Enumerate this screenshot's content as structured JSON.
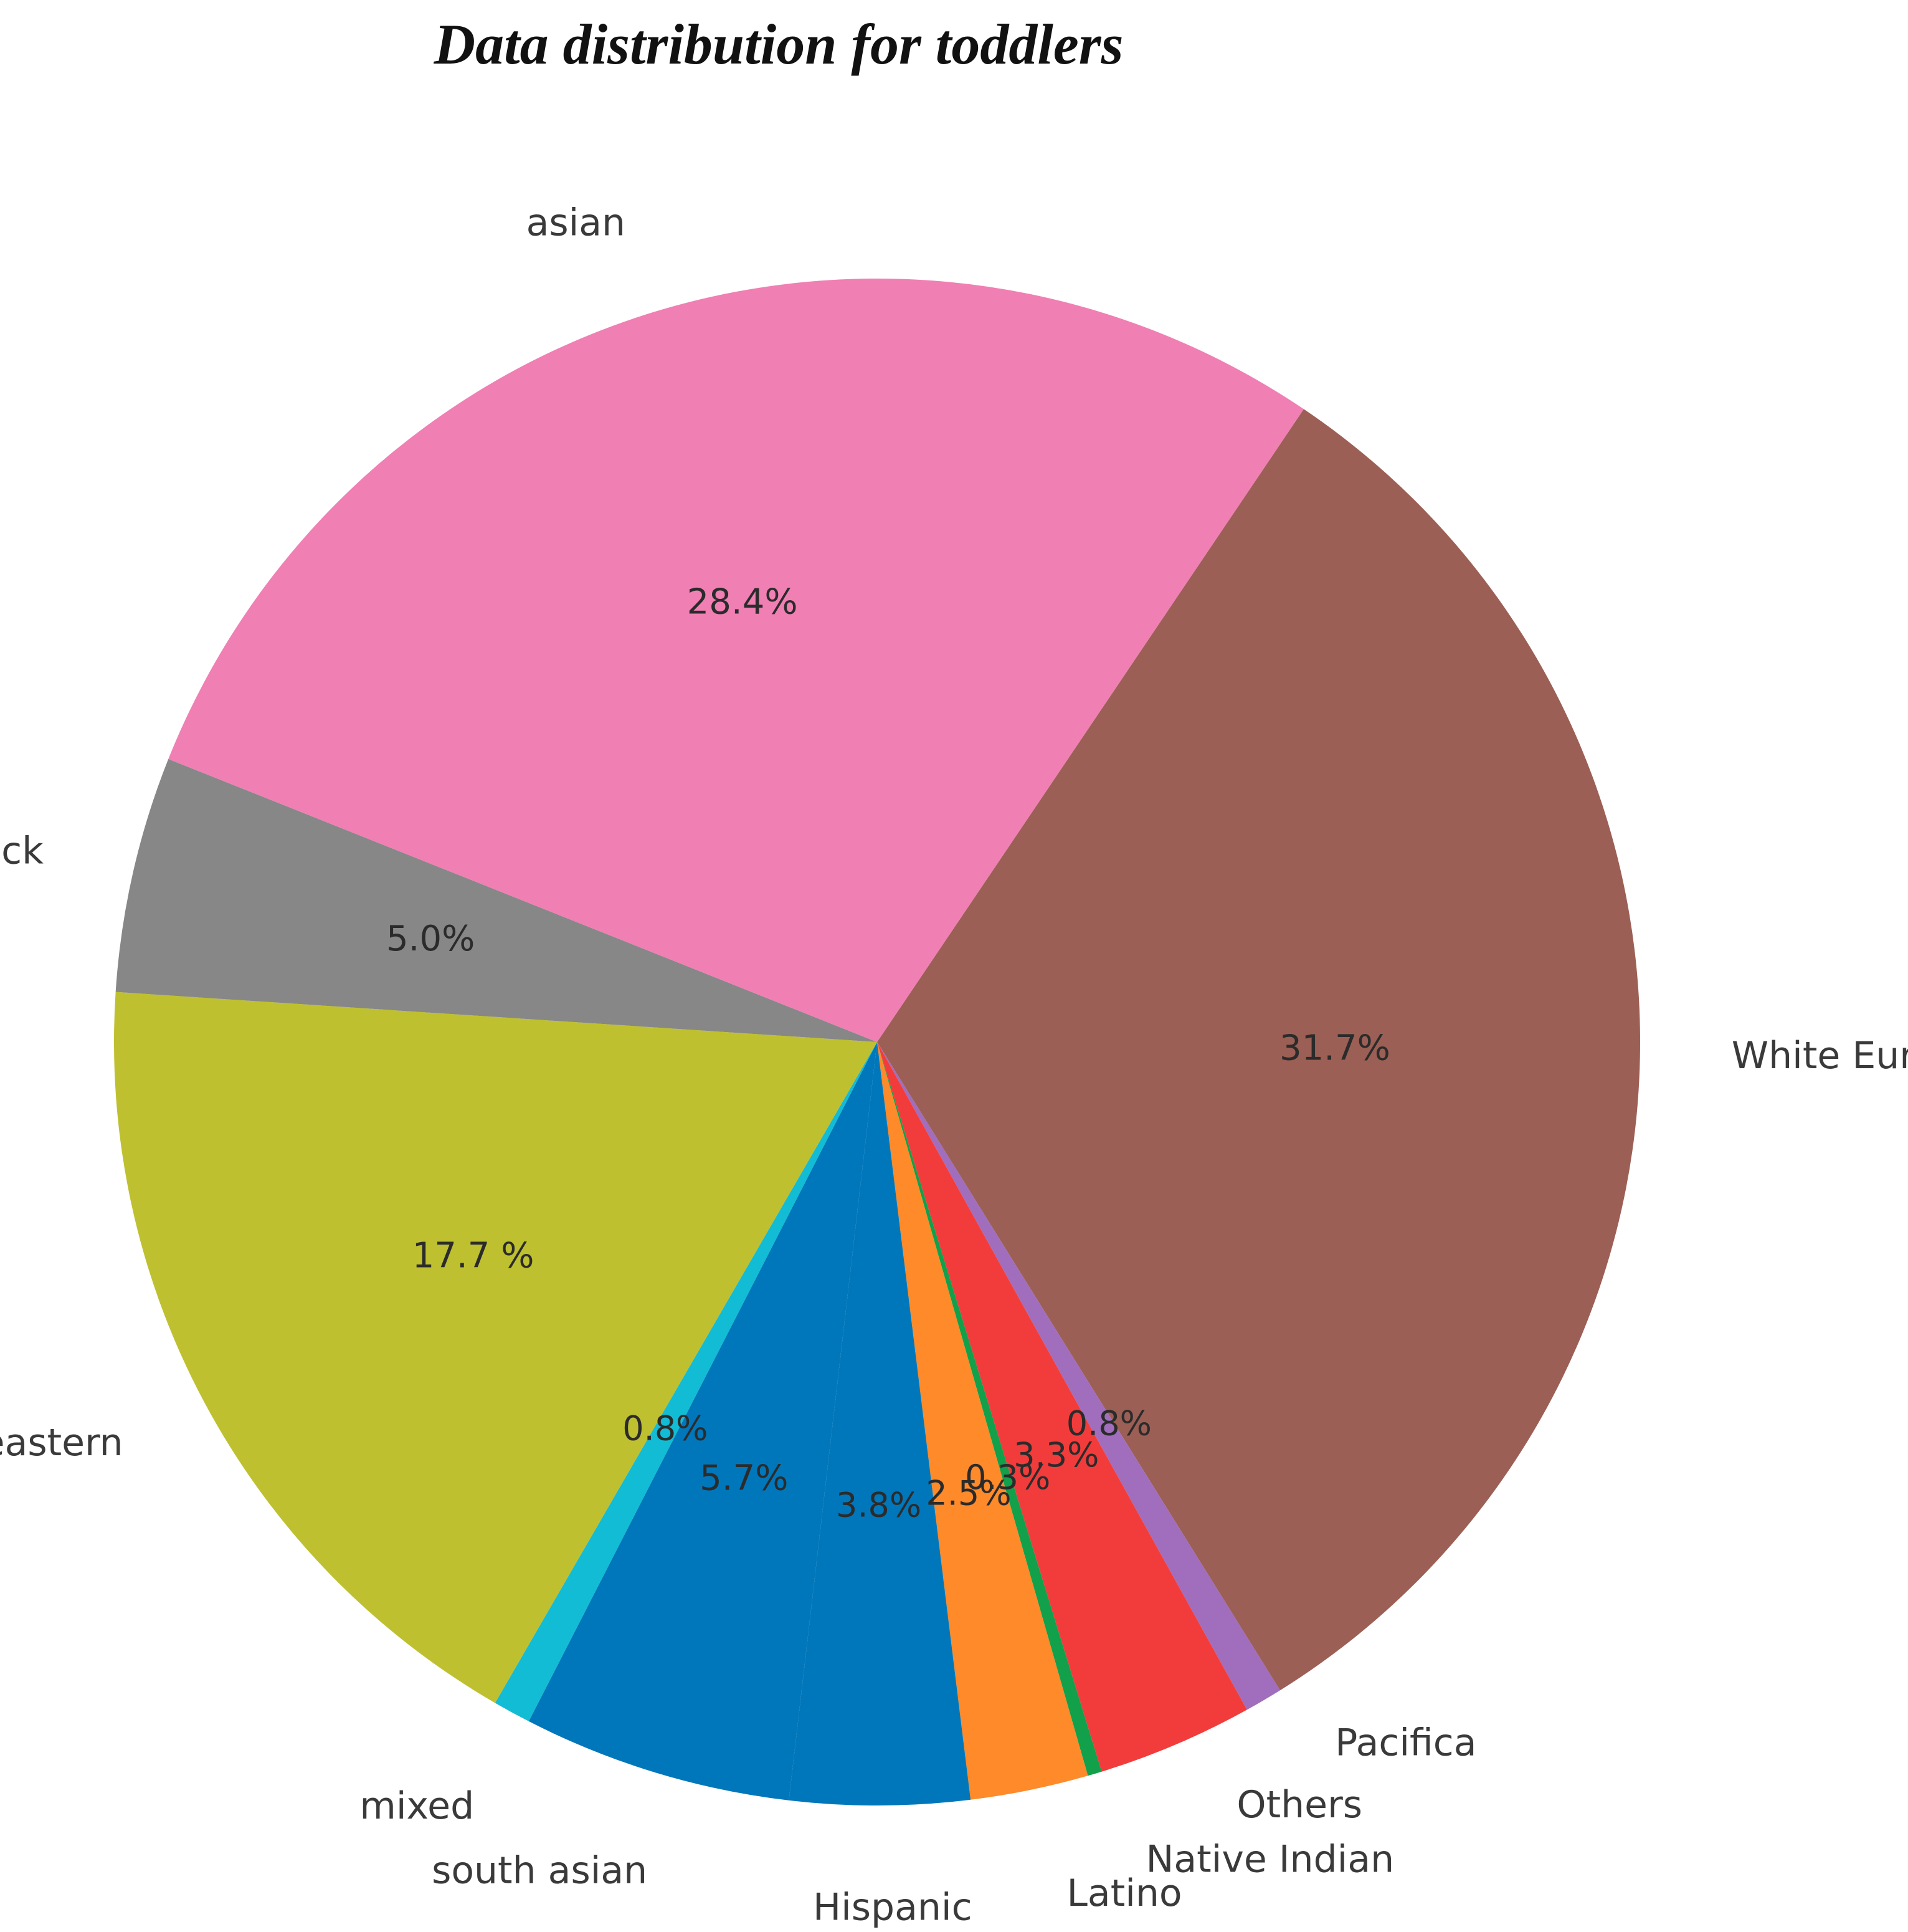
{
  "chart_data": {
    "type": "pie",
    "title": "Data distribution for toddlers",
    "slices": [
      {
        "label": "White European",
        "value": 31.7,
        "pct_text": "31.7%",
        "color": "#9c5f55"
      },
      {
        "label": "Pacifica",
        "value": 0.8,
        "pct_text": "0.8%",
        "color": "#a06ebc"
      },
      {
        "label": "Others",
        "value": 3.3,
        "pct_text": "3.3%",
        "color": "#f23c3c"
      },
      {
        "label": "Native Indian",
        "value": 0.3,
        "pct_text": "0.3%",
        "color": "#12a04a"
      },
      {
        "label": "Latino",
        "value": 2.5,
        "pct_text": "2.5%",
        "color": "#ff8a2a"
      },
      {
        "label": "Hispanic",
        "value": 3.8,
        "pct_text": "3.8%",
        "color": "#0077bb"
      },
      {
        "label": "south asian",
        "value": 5.7,
        "pct_text": "5.7%",
        "color": "#0077bb"
      },
      {
        "label": "mixed",
        "value": 0.8,
        "pct_text": "0.8%",
        "color": "#12bcd4"
      },
      {
        "label": "middle eastern",
        "value": 17.7,
        "pct_text": "17.7 %",
        "color": "#bfc030"
      },
      {
        "label": "black",
        "value": 5.0,
        "pct_text": "5.0%",
        "color": "#878787"
      },
      {
        "label": "asian",
        "value": 28.4,
        "pct_text": "28.4%",
        "color": "#f07fb3"
      }
    ],
    "start_angle_deg": 56,
    "direction": "clockwise",
    "legend": "none"
  }
}
